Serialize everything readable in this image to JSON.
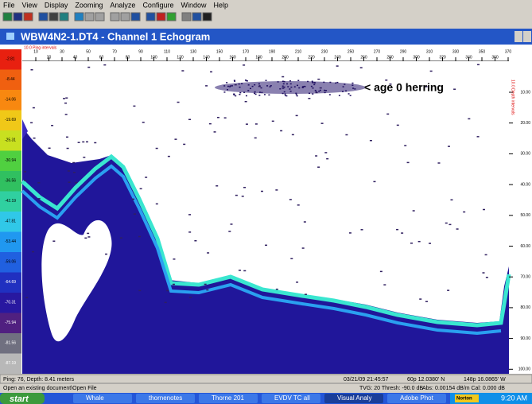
{
  "menu": [
    "File",
    "View",
    "Display",
    "Zooming",
    "Analyze",
    "Configure",
    "Window",
    "Help"
  ],
  "window": {
    "title": "WBW4N2-1.DT4 - Channel 1  Echogram"
  },
  "echogram": {
    "ping_axis_label": "10.0 Ping intervals",
    "ping_ticks": [
      "10",
      "20",
      "30",
      "40",
      "50",
      "60",
      "70",
      "80",
      "90",
      "100",
      "110",
      "120",
      "130",
      "140",
      "150",
      "160",
      "170",
      "180",
      "190",
      "200",
      "210",
      "220",
      "230",
      "240",
      "250",
      "260",
      "270",
      "280",
      "290",
      "300",
      "310",
      "320",
      "330",
      "340",
      "350",
      "360",
      "370"
    ],
    "depth_axis_label": "10.0 Depth intervals",
    "depth_ticks": [
      "10.00",
      "20.00",
      "30.00",
      "40.00",
      "50.00",
      "60.00",
      "70.00",
      "80.00",
      "90.00",
      "100.00"
    ],
    "color_scale": [
      "-2.81",
      "-8.44",
      "-14.06",
      "-19.69",
      "-25.31",
      "-30.94",
      "-36.56",
      "-42.19",
      "-47.81",
      "-53.44",
      "-59.06",
      "-64.69",
      "-70.31",
      "-75.94",
      "-81.56",
      "-87.19"
    ],
    "annotation": "< age 0 herring"
  },
  "status": {
    "position": "Ping: 76, Depth: 8.41 meters",
    "time": "03/21/09 21:45:57",
    "lat": "60p 12.0380' N",
    "lon": "148p 16.0865' W",
    "hint": "Open an existing document\\Open File",
    "tvg": "TVG: 20 Thresh: -90.0 dB",
    "abs": "Abs: 0.00154 dB/m Cal: 0.000 dB"
  },
  "taskbar": {
    "start": "start",
    "items": [
      "Whale",
      "thornenotes",
      "Thorne 201",
      "EVDV TC all",
      "Visual Analy",
      "Adobe Phot"
    ],
    "tray": "Norton",
    "clock": "9:20 AM"
  }
}
